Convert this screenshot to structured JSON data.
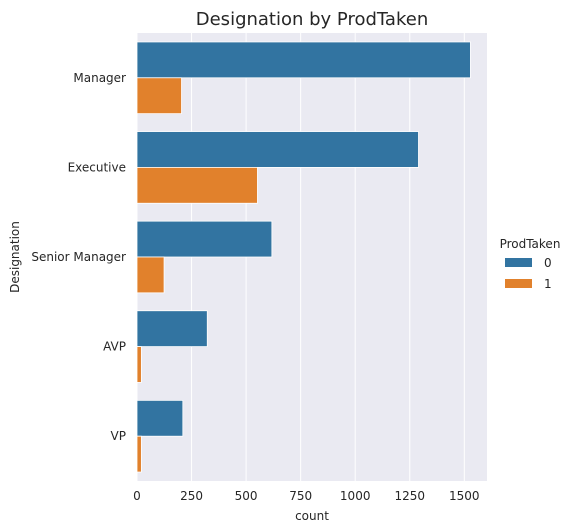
{
  "chart_data": {
    "type": "bar",
    "orientation": "horizontal",
    "title": "Designation by ProdTaken",
    "xlabel": "count",
    "ylabel": "Designation",
    "categories": [
      "Manager",
      "Executive",
      "Senior Manager",
      "AVP",
      "VP"
    ],
    "series": [
      {
        "name": "0",
        "values": [
          1528,
          1290,
          618,
          322,
          210
        ],
        "color": "#3274a1"
      },
      {
        "name": "1",
        "values": [
          204,
          552,
          124,
          20,
          20
        ],
        "color": "#e1812c"
      }
    ],
    "xlim": [
      0,
      1604
    ],
    "xticks": [
      0,
      250,
      500,
      750,
      1000,
      1250,
      1500
    ],
    "grid": true,
    "background": "#eaeaf2",
    "legend": {
      "title": "ProdTaken",
      "placement": "right",
      "entries": [
        "0",
        "1"
      ]
    }
  }
}
